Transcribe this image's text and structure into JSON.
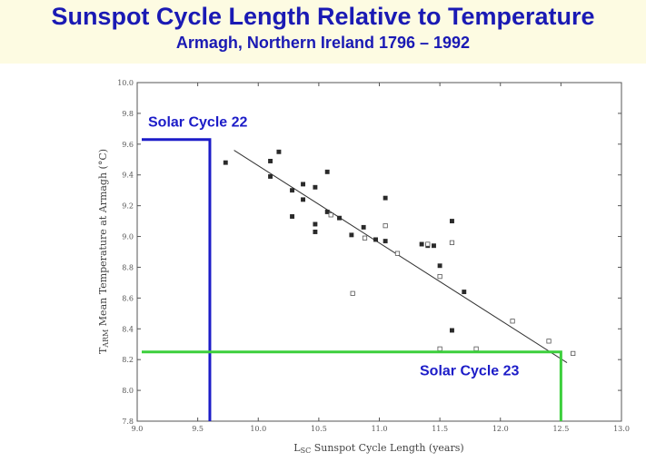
{
  "header": {
    "title": "Sunspot Cycle Length Relative to Temperature",
    "subtitle": "Armagh, Northern Ireland 1796 – 1992"
  },
  "colors": {
    "title": "#1a1ab4",
    "band": "#fdfbe2",
    "cycle22": "#1c1cc8",
    "cycle23": "#3ccf3c",
    "ink": "#333333"
  },
  "chart_data": {
    "type": "scatter",
    "xlabel": "L_SC Sunspot Cycle Length (years)",
    "xlabel_main": "L",
    "xlabel_sub": "SC",
    "xlabel_rest": " Sunspot Cycle Length (years)",
    "ylabel": "T_ARM Mean Temperature at Armagh (°C)",
    "ylabel_main": "T",
    "ylabel_sub": "ARM",
    "ylabel_rest": " Mean Temperature at Armagh (°C)",
    "xlim": [
      9.0,
      13.0
    ],
    "ylim": [
      7.8,
      10.0
    ],
    "x_ticks": [
      9.0,
      9.5,
      10.0,
      10.5,
      11.0,
      11.5,
      12.0,
      12.5,
      13.0
    ],
    "x_tick_labels": [
      "9.0",
      "9.5",
      "10.0",
      "10.5",
      "11.0",
      "11.5",
      "12.0",
      "12.5",
      "13.0"
    ],
    "y_ticks": [
      7.8,
      8.0,
      8.2,
      8.4,
      8.6,
      8.8,
      9.0,
      9.2,
      9.4,
      9.6,
      9.8,
      10.0
    ],
    "y_tick_labels": [
      "7.8",
      "8.0",
      "8.2",
      "8.4",
      "8.6",
      "8.8",
      "9.0",
      "9.2",
      "9.4",
      "9.6",
      "9.8",
      "10.0"
    ],
    "grid": false,
    "series": [
      {
        "marker": "filled-square",
        "points": [
          [
            9.73,
            9.48
          ],
          [
            10.1,
            9.49
          ],
          [
            10.1,
            9.39
          ],
          [
            10.17,
            9.55
          ],
          [
            10.28,
            9.3
          ],
          [
            10.28,
            9.13
          ],
          [
            10.37,
            9.34
          ],
          [
            10.37,
            9.24
          ],
          [
            10.47,
            9.32
          ],
          [
            10.47,
            9.08
          ],
          [
            10.47,
            9.03
          ],
          [
            10.57,
            9.42
          ],
          [
            10.57,
            9.16
          ],
          [
            10.67,
            9.12
          ],
          [
            10.77,
            9.01
          ],
          [
            10.87,
            9.06
          ],
          [
            10.97,
            8.98
          ],
          [
            11.05,
            9.25
          ],
          [
            11.05,
            8.97
          ],
          [
            11.35,
            8.95
          ],
          [
            11.4,
            8.94
          ],
          [
            11.45,
            8.94
          ],
          [
            11.5,
            8.81
          ],
          [
            11.6,
            9.1
          ],
          [
            11.6,
            8.39
          ],
          [
            11.7,
            8.64
          ]
        ]
      },
      {
        "marker": "open-square",
        "points": [
          [
            10.6,
            9.14
          ],
          [
            10.88,
            8.99
          ],
          [
            11.05,
            9.07
          ],
          [
            11.15,
            8.89
          ],
          [
            10.78,
            8.63
          ],
          [
            11.4,
            8.95
          ],
          [
            11.5,
            8.74
          ],
          [
            11.6,
            8.96
          ],
          [
            11.5,
            8.27
          ],
          [
            11.8,
            8.27
          ],
          [
            12.1,
            8.45
          ],
          [
            12.4,
            8.32
          ],
          [
            12.6,
            8.24
          ]
        ]
      }
    ],
    "trend_line": {
      "x": [
        9.8,
        12.55
      ],
      "y": [
        9.56,
        8.18
      ]
    },
    "annotations": [
      {
        "label": "Solar Cycle 22",
        "cycle_length": 9.6,
        "temperature": 9.63,
        "color": "#1c1cc8"
      },
      {
        "label": "Solar Cycle 23",
        "cycle_length": 12.5,
        "temperature": 8.25,
        "color": "#3ccf3c"
      }
    ]
  }
}
